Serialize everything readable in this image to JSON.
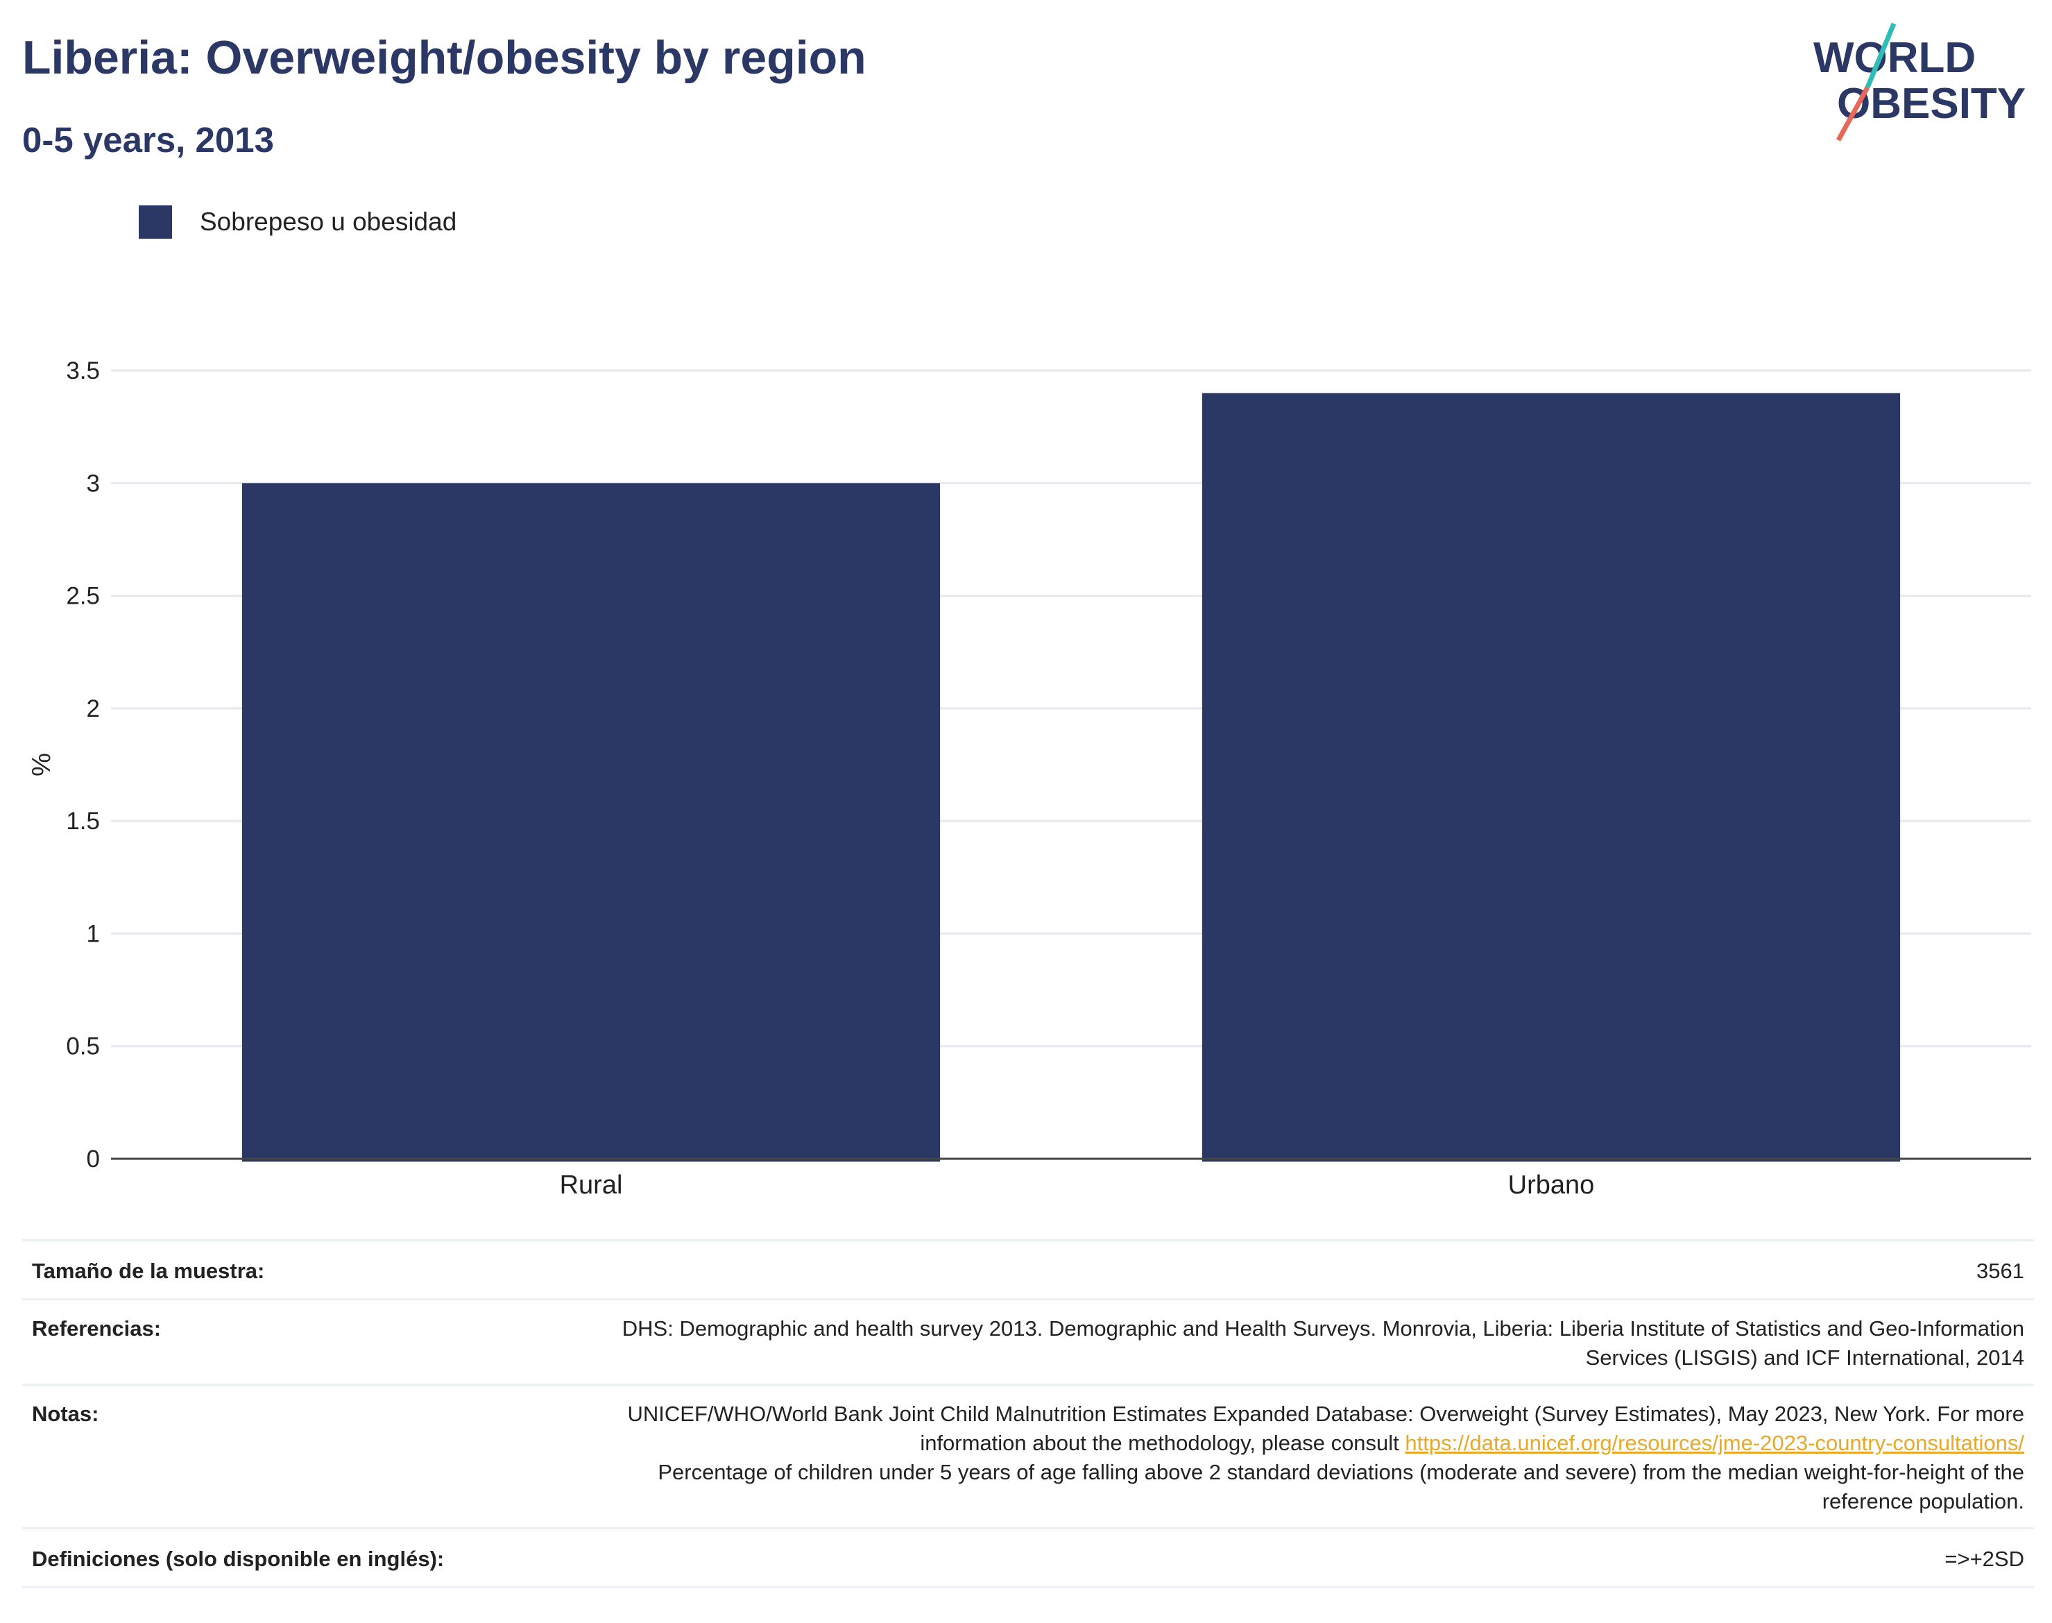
{
  "header": {
    "title": "Liberia: Overweight/obesity by region",
    "subtitle": "0-5 years, 2013"
  },
  "logo": {
    "line1": "WORLD",
    "line2": "OBESITY"
  },
  "legend": {
    "label": "Sobrepeso u obesidad"
  },
  "colors": {
    "bar": "#2b3765",
    "title": "#2b3765",
    "link": "#e8a928",
    "logo_teal": "#2fbdb5",
    "logo_coral": "#e8675a"
  },
  "chart_data": {
    "type": "bar",
    "categories": [
      "Rural",
      "Urbano"
    ],
    "series": [
      {
        "name": "Sobrepeso u obesidad",
        "values": [
          3.0,
          3.4
        ]
      }
    ],
    "ylabel": "%",
    "ylim": [
      0,
      3.5
    ],
    "yticks": [
      0,
      0.5,
      1,
      1.5,
      2,
      2.5,
      3,
      3.5
    ],
    "ytick_labels": [
      "0",
      "0.5",
      "1",
      "1.5",
      "2",
      "2.5",
      "3",
      "3.5"
    ],
    "grid": true,
    "legend_position": "top-left"
  },
  "info": {
    "sample_label": "Tamaño de la muestra:",
    "sample_value": "3561",
    "refs_label": "Referencias:",
    "refs_value": "DHS: Demographic and health survey 2013. Demographic and Health Surveys. Monrovia, Liberia: Liberia Institute of Statistics and Geo-Information Services (LISGIS) and ICF International, 2014",
    "notes_label": "Notas:",
    "notes_text1": "UNICEF/WHO/World Bank Joint Child Malnutrition Estimates Expanded Database: Overweight (Survey Estimates), May 2023, New York. For more information about the methodology, please consult",
    "notes_link": "https://data.unicef.org/resources/jme-2023-country-consultations/",
    "notes_text2": "Percentage of children under 5 years of age falling above 2 standard deviations (moderate and severe) from the median weight-for-height of the reference population.",
    "defs_label": "Definiciones (solo disponible en inglés):",
    "defs_value": "=>+2SD"
  }
}
